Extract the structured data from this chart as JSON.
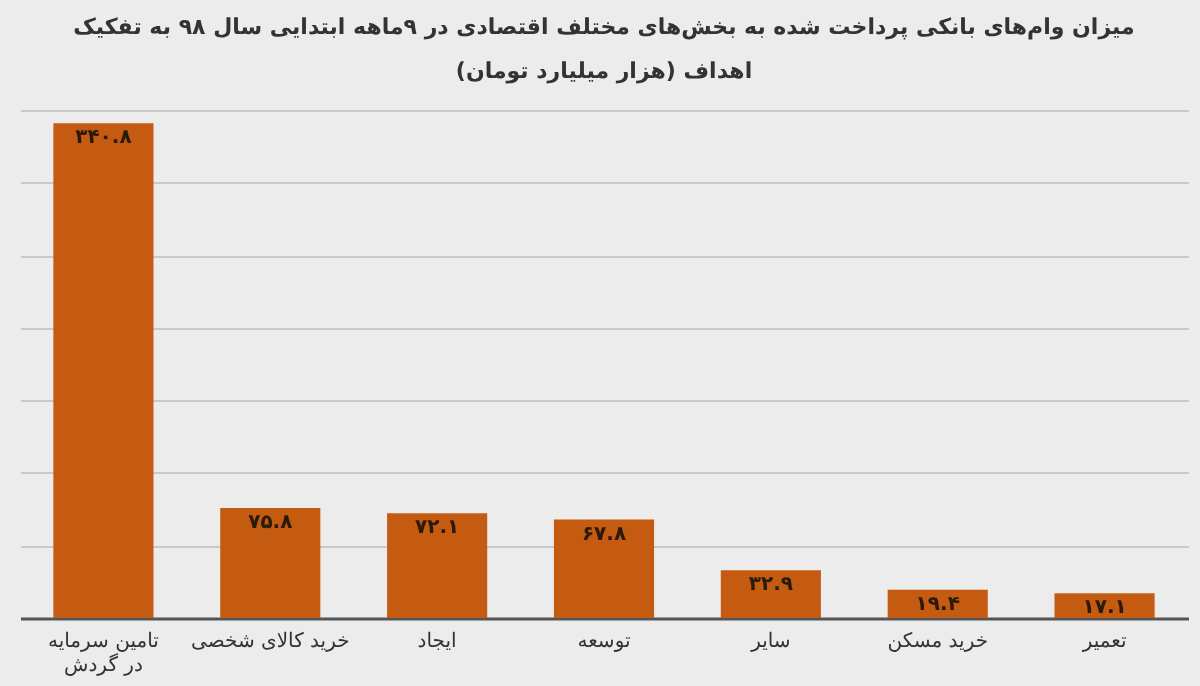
{
  "chart_data": {
    "type": "bar",
    "title": "میزان وام‌های بانکی پرداخت شده به بخش‌های مختلف اقتصادی در ۹ماهه ابتدایی سال ۹۸ به تفکیک\nاهداف (هزار میلیارد تومان)",
    "categories": [
      "تامین سرمایه در گردش",
      "خرید کالای شخصی",
      "ایجاد",
      "توسعه",
      "سایر",
      "خرید مسکن",
      "تعمیر"
    ],
    "values": [
      340.8,
      75.8,
      72.1,
      67.8,
      32.9,
      19.4,
      17.1
    ],
    "value_labels": [
      "۳۴۰.۸",
      "۷۵.۸",
      "۷۲.۱",
      "۶۷.۸",
      "۳۲.۹",
      "۱۹.۴",
      "۱۷.۱"
    ],
    "color": "#c55a11",
    "grid": "y",
    "tick_labels": "x"
  }
}
